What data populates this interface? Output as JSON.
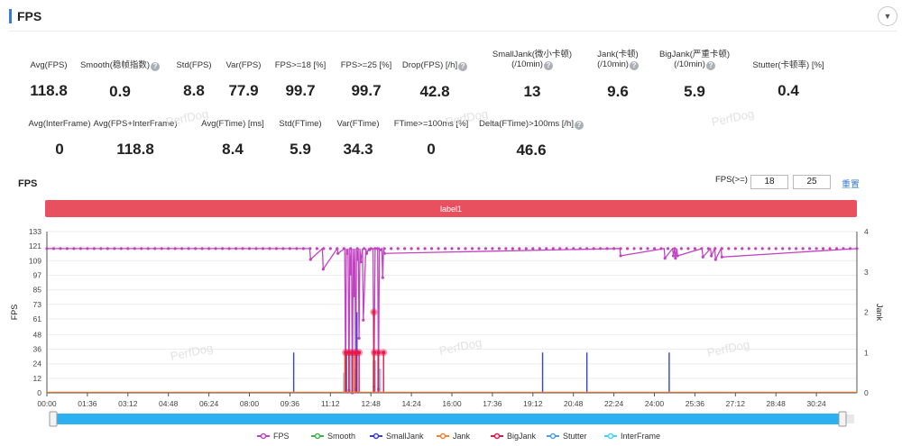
{
  "header": {
    "title": "FPS"
  },
  "metrics_row1": [
    {
      "label": "Avg(FPS)",
      "value": "118.8",
      "help": false
    },
    {
      "label": "Smooth(稳帧指数)",
      "value": "0.9",
      "help": true
    },
    {
      "label": "Std(FPS)",
      "value": "8.8",
      "help": false
    },
    {
      "label": "Var(FPS)",
      "value": "77.9",
      "help": false
    },
    {
      "label": "FPS>=18 [%]",
      "value": "99.7",
      "help": false
    },
    {
      "label": "FPS>=25 [%]",
      "value": "99.7",
      "help": false
    },
    {
      "label": "Drop(FPS) [/h]",
      "value": "42.8",
      "help": true
    },
    {
      "label": "SmallJank(微小卡顿)",
      "label2": "(/10min)",
      "value": "13",
      "help": true
    },
    {
      "label": "Jank(卡顿)",
      "label2": "(/10min)",
      "value": "9.6",
      "help": true
    },
    {
      "label": "BigJank(严重卡顿)",
      "label2": "(/10min)",
      "value": "5.9",
      "help": true
    },
    {
      "label": "Stutter(卡顿率) [%]",
      "value": "0.4",
      "help": false
    }
  ],
  "metrics_row2": [
    {
      "label": "Avg(InterFrame)",
      "value": "0",
      "help": false
    },
    {
      "label": "Avg(FPS+InterFrame)",
      "value": "118.8",
      "help": false
    },
    {
      "label": "Avg(FTime) [ms]",
      "value": "8.4",
      "help": false
    },
    {
      "label": "Std(FTime)",
      "value": "5.9",
      "help": false
    },
    {
      "label": "Var(FTime)",
      "value": "34.3",
      "help": false
    },
    {
      "label": "FTime>=100ms [%]",
      "value": "0",
      "help": false
    },
    {
      "label": "Delta(FTime)>100ms [/h]",
      "value": "46.6",
      "help": true
    }
  ],
  "chart_controls": {
    "title": "FPS",
    "threshold_label": "FPS(>=)",
    "threshold_1": "18",
    "threshold_2": "25",
    "reset_label": "重置",
    "label_bar_text": "label1",
    "watermark": "PerfDog"
  },
  "chart_data": {
    "type": "line",
    "y_left_label": "FPS",
    "y_right_label": "Jank",
    "y_left_ticks": [
      0,
      12,
      24,
      36,
      48,
      61,
      73,
      85,
      97,
      109,
      121,
      133
    ],
    "y_right_ticks": [
      0,
      1,
      2,
      3,
      4
    ],
    "ylim_left": [
      0,
      133
    ],
    "ylim_right": [
      0,
      4
    ],
    "x_ticks": [
      "00:00",
      "01:36",
      "03:12",
      "04:48",
      "06:24",
      "08:00",
      "09:36",
      "11:12",
      "12:48",
      "14:24",
      "16:00",
      "17:36",
      "19:12",
      "20:48",
      "22:24",
      "24:00",
      "25:36",
      "27:12",
      "28:48",
      "30:24"
    ],
    "x_range_seconds": [
      0,
      1920
    ],
    "legend_position": "bottom",
    "colors": {
      "FPS": "#c243c1",
      "Smooth": "#3cb44b",
      "SmallJank": "#3a3fd6",
      "Jank": "#f58231",
      "BigJank": "#e6194b",
      "Stutter": "#4d9fe0",
      "InterFrame": "#42d4f4"
    },
    "series": [
      {
        "name": "FPS",
        "baseline": 119,
        "dips": [
          {
            "t": 625,
            "fps": 110
          },
          {
            "t": 655,
            "fps": 102
          },
          {
            "t": 690,
            "fps": 115
          },
          {
            "t": 708,
            "fps": 5
          },
          {
            "t": 712,
            "fps": 115
          },
          {
            "t": 716,
            "fps": 2
          },
          {
            "t": 720,
            "fps": 98
          },
          {
            "t": 724,
            "fps": 0
          },
          {
            "t": 728,
            "fps": 80
          },
          {
            "t": 732,
            "fps": 3
          },
          {
            "t": 736,
            "fps": 110
          },
          {
            "t": 740,
            "fps": 45
          },
          {
            "t": 744,
            "fps": 108
          },
          {
            "t": 750,
            "fps": 60
          },
          {
            "t": 758,
            "fps": 115
          },
          {
            "t": 765,
            "fps": 118
          },
          {
            "t": 775,
            "fps": 5
          },
          {
            "t": 778,
            "fps": 119
          },
          {
            "t": 786,
            "fps": 3
          },
          {
            "t": 790,
            "fps": 118
          },
          {
            "t": 796,
            "fps": 95
          },
          {
            "t": 800,
            "fps": 115
          },
          {
            "t": 1360,
            "fps": 113
          },
          {
            "t": 1465,
            "fps": 111
          },
          {
            "t": 1485,
            "fps": 113
          },
          {
            "t": 1490,
            "fps": 111
          },
          {
            "t": 1495,
            "fps": 113
          },
          {
            "t": 1555,
            "fps": 112
          },
          {
            "t": 1575,
            "fps": 113
          },
          {
            "t": 1585,
            "fps": 110
          },
          {
            "t": 1600,
            "fps": 112
          }
        ]
      },
      {
        "name": "SmallJank",
        "events": [
          {
            "t": 585,
            "v": 1
          },
          {
            "t": 710,
            "v": 1
          },
          {
            "t": 735,
            "v": 2
          },
          {
            "t": 785,
            "v": 1
          },
          {
            "t": 1175,
            "v": 1
          },
          {
            "t": 1280,
            "v": 1
          },
          {
            "t": 1475,
            "v": 1
          }
        ]
      },
      {
        "name": "Jank",
        "events": [
          {
            "t": 706,
            "v": 1
          },
          {
            "t": 716,
            "v": 1
          },
          {
            "t": 728,
            "v": 1
          },
          {
            "t": 774,
            "v": 1
          },
          {
            "t": 786,
            "v": 1
          }
        ]
      },
      {
        "name": "BigJank",
        "events": [
          {
            "t": 708,
            "v": 1
          },
          {
            "t": 716,
            "v": 1
          },
          {
            "t": 724,
            "v": 1
          },
          {
            "t": 732,
            "v": 1
          },
          {
            "t": 740,
            "v": 1
          },
          {
            "t": 775,
            "v": 2
          },
          {
            "t": 776,
            "v": 1
          },
          {
            "t": 786,
            "v": 1
          },
          {
            "t": 798,
            "v": 1
          }
        ]
      },
      {
        "name": "Stutter",
        "events": [
          {
            "t": 706,
            "v": 0.5
          },
          {
            "t": 720,
            "v": 1
          },
          {
            "t": 732,
            "v": 0.6
          },
          {
            "t": 776,
            "v": 0.8
          },
          {
            "t": 788,
            "v": 0.6
          }
        ]
      },
      {
        "name": "Smooth",
        "events": []
      },
      {
        "name": "InterFrame",
        "events": []
      }
    ],
    "legend": [
      "FPS",
      "Smooth",
      "SmallJank",
      "Jank",
      "BigJank",
      "Stutter",
      "InterFrame"
    ]
  }
}
